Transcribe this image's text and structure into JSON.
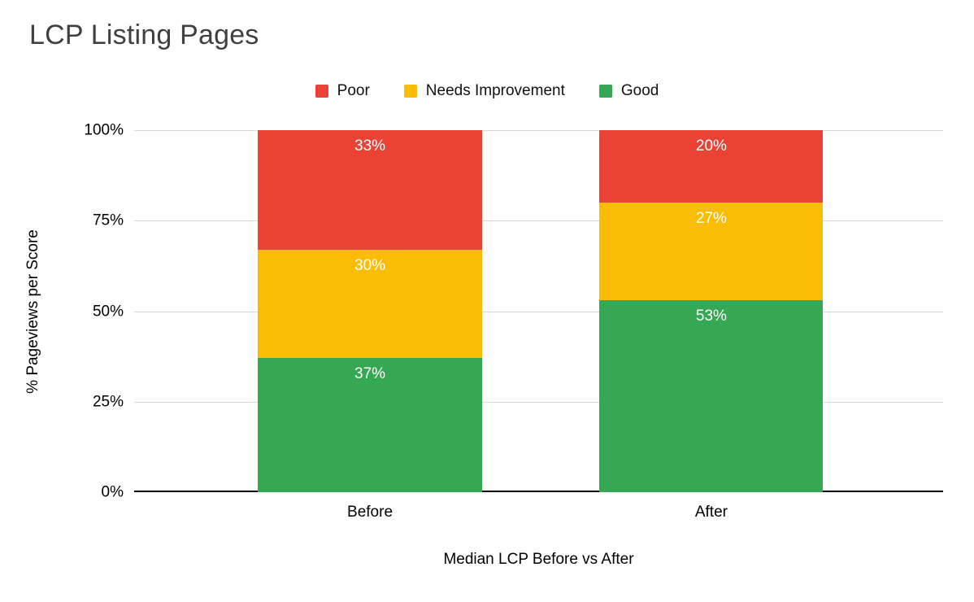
{
  "chart_data": {
    "type": "bar",
    "stacked": true,
    "percent_stacked": true,
    "title": "LCP Listing Pages",
    "xlabel": "Median LCP Before vs After",
    "ylabel": "% Pageviews per Score",
    "categories": [
      "Before",
      "After"
    ],
    "series": [
      {
        "name": "Poor",
        "color": "#EA4335",
        "values": [
          33,
          20
        ]
      },
      {
        "name": "Needs Improvement",
        "color": "#FBBC04",
        "values": [
          30,
          27
        ]
      },
      {
        "name": "Good",
        "color": "#34A853",
        "values": [
          37,
          53
        ]
      }
    ],
    "stack_order_bottom_to_top": [
      "Good",
      "Needs Improvement",
      "Poor"
    ],
    "y_ticks": [
      {
        "value": 0,
        "label": "0%"
      },
      {
        "value": 25,
        "label": "25%"
      },
      {
        "value": 50,
        "label": "50%"
      },
      {
        "value": 75,
        "label": "75%"
      },
      {
        "value": 100,
        "label": "100%"
      }
    ],
    "ylim": [
      0,
      100
    ],
    "grid": true,
    "legend_position": "top",
    "data_labels": true,
    "data_label_suffix": "%",
    "data_label_color": "#ffffff"
  },
  "colors": {
    "background": "#ffffff",
    "title_text": "#404040",
    "axis_text": "#000000",
    "gridline": "#d9d9d9",
    "axis_line": "#000000",
    "poor": "#EA4335",
    "needs_improvement": "#FBBC04",
    "good": "#34A853"
  }
}
